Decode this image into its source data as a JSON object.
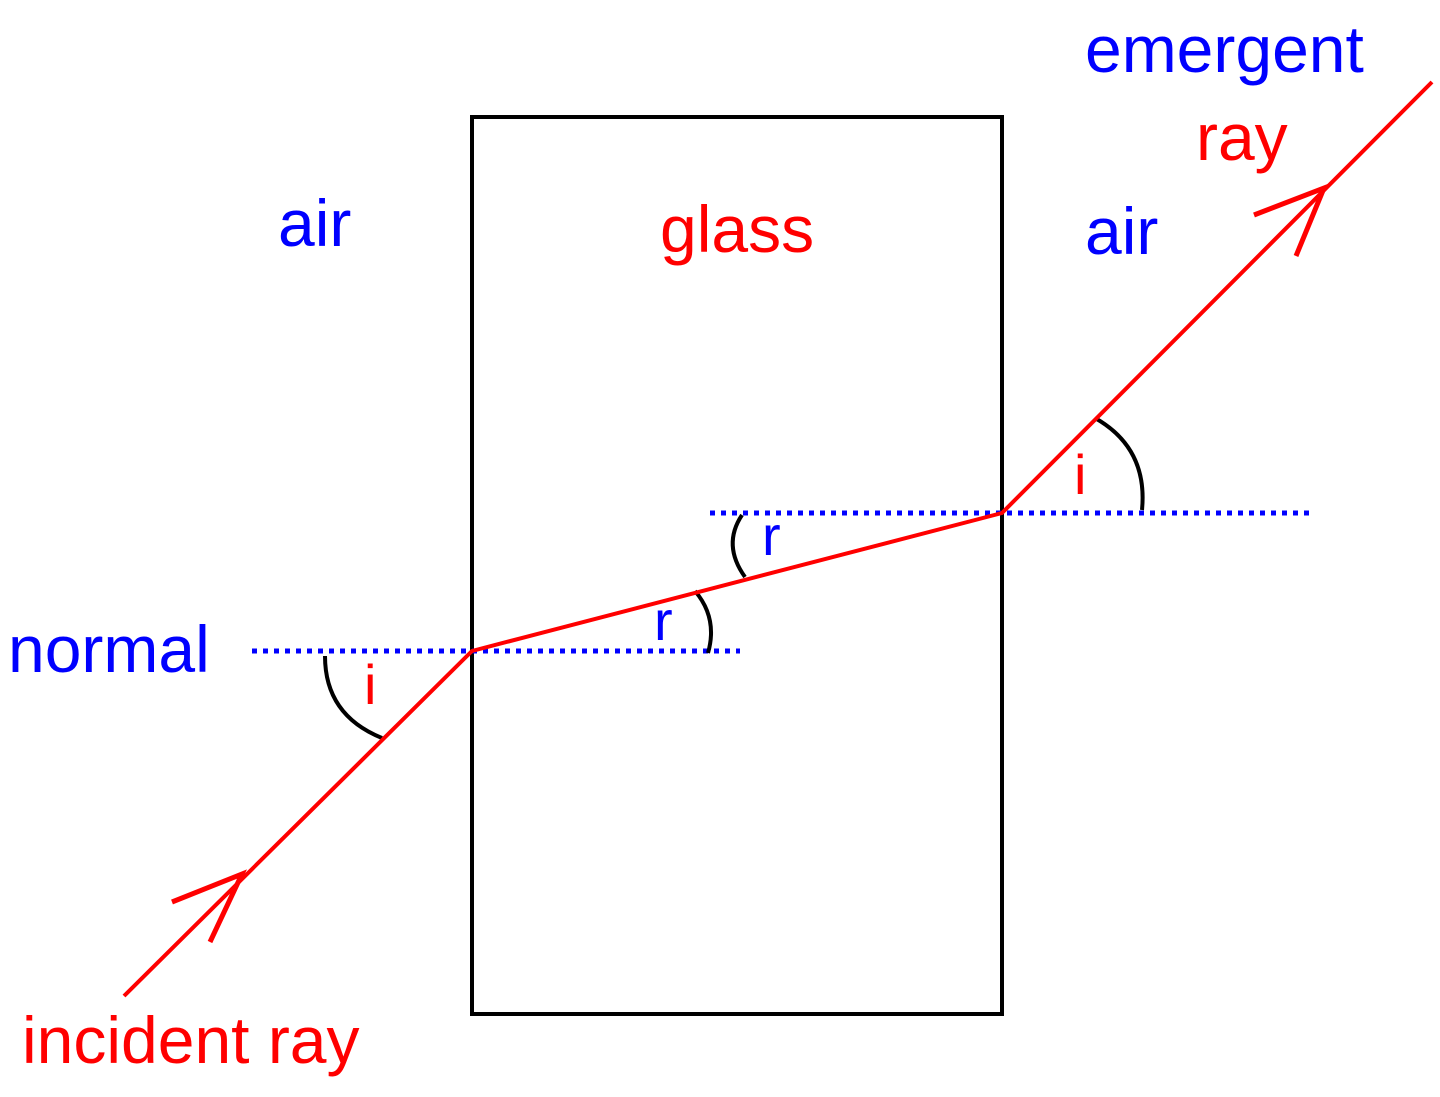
{
  "labels": {
    "air_left": "air",
    "glass": "glass",
    "air_right": "air",
    "emergent": "emergent",
    "ray_top": "ray",
    "normal": "normal",
    "incident_ray": "incident ray",
    "angle_i_incident": "i",
    "angle_r_lower": "r",
    "angle_r_upper": "r",
    "angle_i_emergent": "i"
  },
  "colors": {
    "ray": "#ff0000",
    "medium_label": "#0000ff",
    "normal_line": "#0000ff",
    "block_outline": "#000000",
    "angle_arc": "#000000"
  }
}
